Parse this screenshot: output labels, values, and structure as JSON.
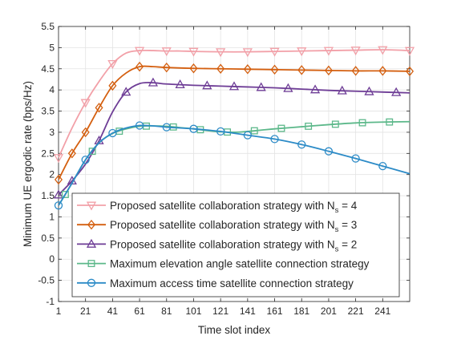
{
  "chart_data": {
    "type": "line",
    "xlabel": "Time slot index",
    "ylabel": "Minimum UE ergodic rate (bps/Hz)",
    "xlim": [
      1,
      261
    ],
    "ylim": [
      -1,
      5.5
    ],
    "xticks": [
      1,
      21,
      41,
      61,
      81,
      101,
      121,
      141,
      161,
      181,
      201,
      221,
      241
    ],
    "xtick_labels": [
      "1",
      "21",
      "41",
      "61",
      "81",
      "101",
      "121",
      "141",
      "161",
      "181",
      "201",
      "221",
      "241"
    ],
    "yticks": [
      -1,
      -0.5,
      0,
      0.5,
      1,
      1.5,
      2,
      2.5,
      3,
      3.5,
      4,
      4.5,
      5,
      5.5
    ],
    "ytick_labels": [
      "-1",
      "-0.5",
      "0",
      "0.5",
      "1",
      "1.5",
      "2",
      "2.5",
      "3",
      "3.5",
      "4",
      "4.5",
      "5",
      "5.5"
    ],
    "grid": true,
    "legend_position": "bottom",
    "series": [
      {
        "name": "Proposed satellite collaboration strategy with N_s = 4",
        "legend_main": "Proposed satellite collaboration strategy with N",
        "legend_sub": "s",
        "legend_tail": " = 4",
        "color": "#F2A0A8",
        "marker": "triangle-down",
        "x": [
          1,
          11,
          21,
          31,
          41,
          51,
          61,
          71,
          81,
          91,
          101,
          121,
          141,
          161,
          181,
          201,
          221,
          241,
          261
        ],
        "y": [
          2.4,
          3.1,
          3.7,
          4.2,
          4.62,
          4.87,
          4.93,
          4.93,
          4.92,
          4.92,
          4.91,
          4.9,
          4.9,
          4.91,
          4.92,
          4.93,
          4.94,
          4.95,
          4.93
        ],
        "marker_x": [
          1,
          21,
          41,
          61,
          81,
          101,
          121,
          141,
          161,
          181,
          201,
          221,
          241,
          261
        ]
      },
      {
        "name": "Proposed satellite collaboration strategy with N_s = 3",
        "legend_main": "Proposed satellite collaboration strategy with N",
        "legend_sub": "s",
        "legend_tail": " = 3",
        "color": "#D45F0F",
        "marker": "diamond",
        "x": [
          1,
          11,
          21,
          31,
          41,
          51,
          61,
          71,
          81,
          101,
          121,
          141,
          161,
          181,
          201,
          221,
          241,
          261
        ],
        "y": [
          1.88,
          2.5,
          3.0,
          3.58,
          4.1,
          4.4,
          4.55,
          4.55,
          4.53,
          4.51,
          4.5,
          4.49,
          4.48,
          4.47,
          4.46,
          4.45,
          4.45,
          4.44
        ],
        "marker_x": [
          1,
          11,
          21,
          31,
          41,
          61,
          81,
          101,
          121,
          141,
          161,
          181,
          201,
          221,
          241,
          261
        ]
      },
      {
        "name": "Proposed satellite collaboration strategy with N_s = 2",
        "legend_main": "Proposed satellite collaboration strategy with N",
        "legend_sub": "s",
        "legend_tail": " = 2",
        "color": "#6E3D96",
        "marker": "triangle-up",
        "x": [
          1,
          11,
          21,
          31,
          41,
          51,
          61,
          71,
          81,
          101,
          121,
          141,
          161,
          181,
          201,
          221,
          241,
          261
        ],
        "y": [
          1.52,
          1.85,
          2.25,
          2.8,
          3.48,
          3.95,
          4.15,
          4.17,
          4.14,
          4.11,
          4.09,
          4.07,
          4.05,
          4.02,
          3.99,
          3.97,
          3.95,
          3.93
        ],
        "marker_x": [
          1,
          11,
          31,
          51,
          71,
          91,
          111,
          131,
          151,
          171,
          191,
          211,
          231,
          251
        ]
      },
      {
        "name": "Maximum elevation angle satellite connection strategy",
        "legend_main": "Maximum elevation angle satellite connection strategy",
        "legend_sub": "",
        "legend_tail": "",
        "color": "#5CB88A",
        "marker": "square",
        "x": [
          1,
          6,
          11,
          21,
          31,
          41,
          51,
          61,
          71,
          81,
          91,
          101,
          111,
          121,
          131,
          141,
          151,
          161,
          181,
          201,
          221,
          241,
          261
        ],
        "y": [
          1.27,
          1.53,
          1.8,
          2.35,
          2.75,
          2.97,
          3.08,
          3.14,
          3.15,
          3.14,
          3.11,
          3.08,
          3.04,
          3.01,
          3.0,
          3.02,
          3.05,
          3.08,
          3.13,
          3.18,
          3.22,
          3.24,
          3.25
        ],
        "marker_x": [
          6,
          26,
          46,
          66,
          86,
          106,
          126,
          146,
          166,
          186,
          206,
          226,
          246
        ]
      },
      {
        "name": "Maximum access time satellite connection strategy",
        "legend_main": "Maximum access time satellite connection strategy",
        "legend_sub": "",
        "legend_tail": "",
        "color": "#2C8BC7",
        "marker": "circle",
        "x": [
          1,
          11,
          21,
          31,
          41,
          51,
          61,
          71,
          81,
          101,
          121,
          141,
          161,
          181,
          201,
          221,
          241,
          261
        ],
        "y": [
          1.27,
          1.8,
          2.35,
          2.75,
          2.98,
          3.1,
          3.16,
          3.15,
          3.12,
          3.08,
          3.02,
          2.93,
          2.84,
          2.71,
          2.55,
          2.38,
          2.2,
          2.02
        ],
        "marker_x": [
          1,
          21,
          41,
          61,
          81,
          101,
          121,
          141,
          161,
          181,
          201,
          221,
          241
        ]
      }
    ]
  }
}
